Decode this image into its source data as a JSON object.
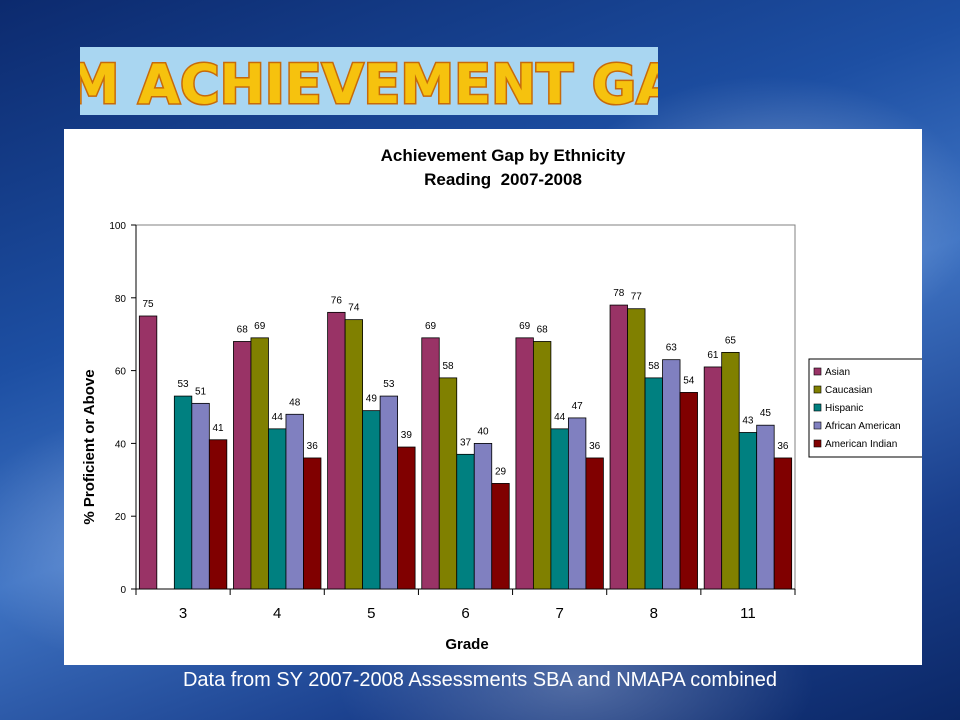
{
  "page": {
    "banner_title": "NM ACHIEVEMENT GAP",
    "caption": "Data from SY 2007-2008 Assessments SBA and NMAPA combined",
    "banner_bg": "#a9d6f1",
    "banner_text_fill": "#f6c20e",
    "banner_text_stroke": "#c76a0a"
  },
  "chart_data": {
    "type": "bar",
    "title": "Achievement Gap by Ethnicity",
    "subtitle": "Reading  2007-2008",
    "xlabel": "Grade",
    "ylabel": "% Proficient or Above",
    "ylim": [
      0,
      100
    ],
    "yticks": [
      "0",
      "20",
      "40",
      "60",
      "80",
      "100"
    ],
    "grid": false,
    "legend_position": "right",
    "categories": [
      "3",
      "4",
      "5",
      "6",
      "7",
      "8",
      "11"
    ],
    "series": [
      {
        "name": "Asian",
        "color": "#993366",
        "values": [
          75,
          68,
          76,
          69,
          69,
          78,
          61
        ]
      },
      {
        "name": "Caucasian",
        "color": "#808000",
        "values": [
          null,
          69,
          74,
          58,
          68,
          77,
          65
        ]
      },
      {
        "name": "Hispanic",
        "color": "#008080",
        "values": [
          53,
          44,
          49,
          37,
          44,
          58,
          43
        ]
      },
      {
        "name": "African American",
        "color": "#8080c0",
        "values": [
          51,
          48,
          53,
          40,
          47,
          63,
          45
        ]
      },
      {
        "name": "American Indian",
        "color": "#800000",
        "values": [
          41,
          36,
          39,
          29,
          36,
          54,
          36
        ]
      }
    ]
  }
}
